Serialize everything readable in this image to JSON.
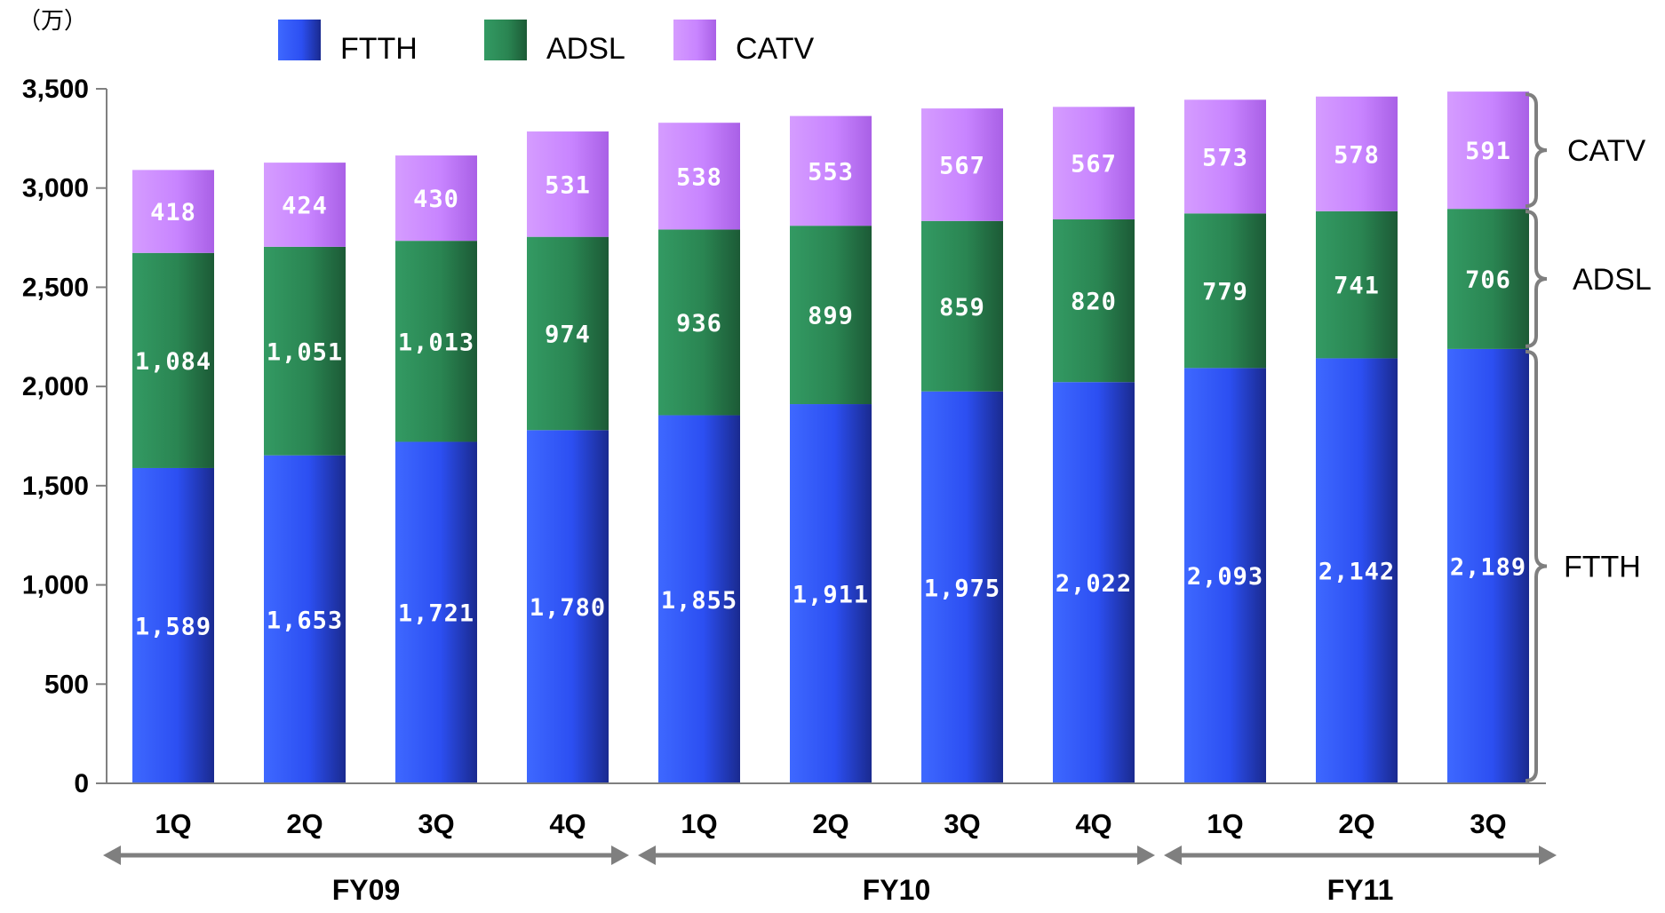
{
  "chart_data": {
    "type": "bar",
    "stacked": true,
    "unit": "（万）",
    "categories": [
      "1Q",
      "2Q",
      "3Q",
      "4Q",
      "1Q",
      "2Q",
      "3Q",
      "4Q",
      "1Q",
      "2Q",
      "3Q"
    ],
    "groups": [
      {
        "label": "FY09",
        "from": 0,
        "to": 3
      },
      {
        "label": "FY10",
        "from": 4,
        "to": 7
      },
      {
        "label": "FY11",
        "from": 8,
        "to": 10
      }
    ],
    "series": [
      {
        "name": "FTTH",
        "color": "#2f55ff",
        "values": [
          1589,
          1653,
          1721,
          1780,
          1855,
          1911,
          1975,
          2022,
          2093,
          2142,
          2189
        ]
      },
      {
        "name": "ADSL",
        "color": "#2a8a55",
        "values": [
          1084,
          1051,
          1013,
          974,
          936,
          899,
          859,
          820,
          779,
          741,
          706
        ]
      },
      {
        "name": "CATV",
        "color": "#cc8bff",
        "values": [
          418,
          424,
          430,
          531,
          538,
          553,
          567,
          567,
          573,
          578,
          591
        ]
      }
    ],
    "data_labels": {
      "FTTH": [
        "1,589",
        "1,653",
        "1,721",
        "1,780",
        "1,855",
        "1,911",
        "1,975",
        "2,022",
        "2,093",
        "2,142",
        "2,189"
      ],
      "ADSL": [
        "1,084",
        "1,051",
        "1,013",
        "974",
        "936",
        "899",
        "859",
        "820",
        "779",
        "741",
        "706"
      ],
      "CATV": [
        "418",
        "424",
        "430",
        "531",
        "538",
        "553",
        "567",
        "567",
        "573",
        "578",
        "591"
      ]
    },
    "ylim": [
      0,
      3500
    ],
    "yticks": [
      0,
      500,
      1000,
      1500,
      2000,
      2500,
      3000,
      3500
    ],
    "ytick_labels": [
      "0",
      "500",
      "1,000",
      "1,500",
      "2,000",
      "2,500",
      "3,000",
      "3,500"
    ],
    "legend_position": "top",
    "grid": false,
    "bracket_labels": [
      "CATV",
      "ADSL",
      "FTTH"
    ]
  }
}
